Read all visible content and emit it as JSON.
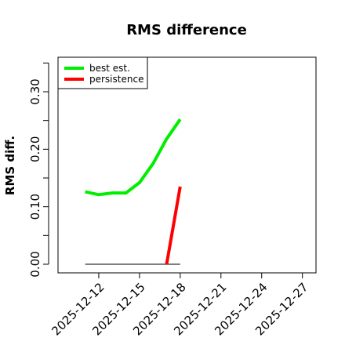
{
  "chart_data": {
    "type": "line",
    "title": "RMS difference",
    "xlabel": "",
    "ylabel": "RMS diff.",
    "x_tick_labels": [
      "2025-12-12",
      "2025-12-15",
      "2025-12-18",
      "2025-12-21",
      "2025-12-24",
      "2025-12-27"
    ],
    "y_tick_labels": [
      "0.00",
      "0.10",
      "0.20",
      "0.30"
    ],
    "x_ticks": [
      "2025-12-12",
      "2025-12-15",
      "2025-12-18",
      "2025-12-21",
      "2025-12-24",
      "2025-12-27"
    ],
    "y_ticks": [
      0.0,
      0.1,
      0.2,
      0.3
    ],
    "xlim": [
      "2025-12-09",
      "2025-12-28"
    ],
    "ylim": [
      -0.015,
      0.36
    ],
    "grid": false,
    "legend_position": "top-left",
    "reference_line": {
      "y": 0.0,
      "x_start": "2025-12-11",
      "x_end": "2025-12-18",
      "color": "#555555"
    },
    "series": [
      {
        "name": "best est.",
        "color": "#00ee00",
        "points": [
          {
            "x": "2025-12-11",
            "y": 0.126
          },
          {
            "x": "2025-12-12",
            "y": 0.121
          },
          {
            "x": "2025-12-13",
            "y": 0.124
          },
          {
            "x": "2025-12-14",
            "y": 0.124
          },
          {
            "x": "2025-12-15",
            "y": 0.142
          },
          {
            "x": "2025-12-16",
            "y": 0.175
          },
          {
            "x": "2025-12-17",
            "y": 0.218
          },
          {
            "x": "2025-12-18",
            "y": 0.252
          }
        ]
      },
      {
        "name": "persistence",
        "color": "#ff0000",
        "points": [
          {
            "x": "2025-12-17",
            "y": 0.0
          },
          {
            "x": "2025-12-18",
            "y": 0.135
          }
        ]
      }
    ]
  }
}
